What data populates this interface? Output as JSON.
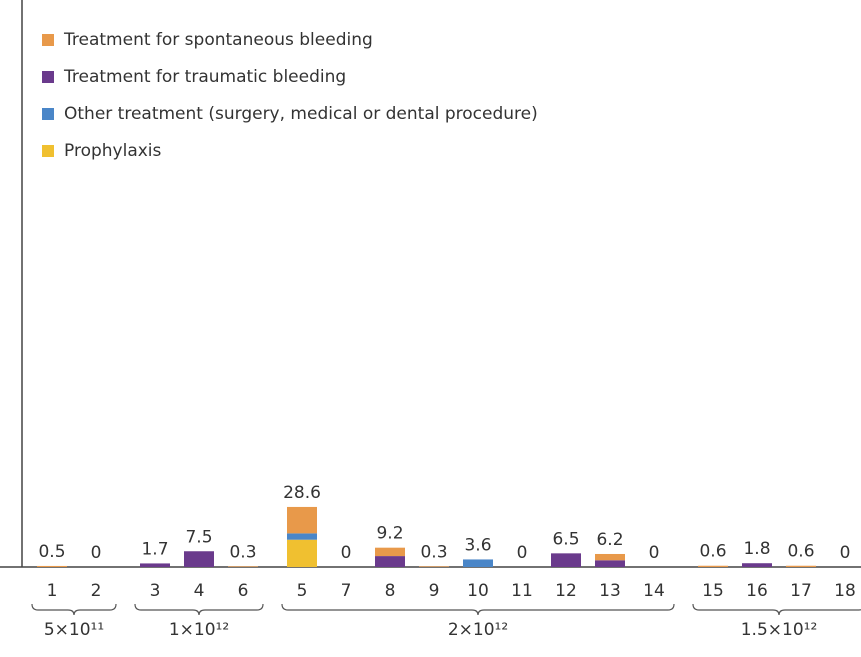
{
  "chart_data": {
    "type": "stacked_bar",
    "categories": [
      "1",
      "2",
      "3",
      "4",
      "6",
      "5",
      "7",
      "8",
      "9",
      "10",
      "11",
      "12",
      "13",
      "14",
      "15",
      "16",
      "17",
      "18"
    ],
    "series": [
      {
        "name": "Treatment for spontaneous bleeding",
        "color": "#e8994a",
        "values": [
          0.5,
          0,
          0,
          0,
          0.3,
          12.6,
          0,
          4.0,
          0.3,
          0,
          0,
          0,
          3.0,
          0,
          0.6,
          0,
          0.6,
          0
        ]
      },
      {
        "name": "Treatment for traumatic bleeding",
        "color": "#6a3a8c",
        "values": [
          0,
          0,
          1.7,
          7.5,
          0,
          0,
          0,
          5.2,
          0,
          0,
          0,
          6.5,
          3.2,
          0,
          0,
          1.8,
          0,
          0
        ]
      },
      {
        "name": "Other treatment (surgery, medical or dental procedure)",
        "color": "#4a86c8",
        "values": [
          0,
          0,
          0,
          0,
          0,
          3.0,
          0,
          0,
          0,
          3.6,
          0,
          0,
          0,
          0,
          0,
          0,
          0,
          0
        ]
      },
      {
        "name": "Prophylaxis",
        "color": "#f0c030",
        "values": [
          0,
          0,
          0,
          0,
          0,
          13.0,
          0,
          0,
          0,
          0,
          0,
          0,
          0,
          0,
          0,
          0,
          0,
          0
        ]
      }
    ],
    "totals": [
      0.5,
      0,
      1.7,
      7.5,
      0.3,
      28.6,
      0,
      9.2,
      0.3,
      3.6,
      0,
      6.5,
      6.2,
      0,
      0.6,
      1.8,
      0.6,
      0
    ],
    "groups": [
      {
        "label": "5×10¹¹",
        "from": "1",
        "to": "2"
      },
      {
        "label": "1×10¹²",
        "from": "3",
        "to": "6"
      },
      {
        "label": "2×10¹²",
        "from": "5",
        "to": "14"
      },
      {
        "label": "1.5×10¹²",
        "from": "15",
        "to": "18"
      }
    ],
    "ylim": [
      0,
      270
    ]
  }
}
